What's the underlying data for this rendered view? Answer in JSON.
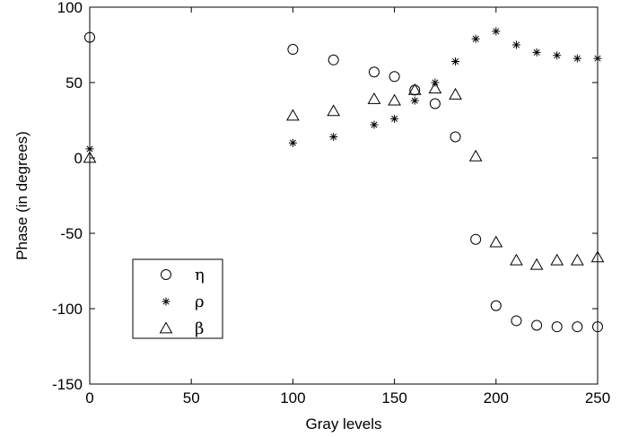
{
  "chart_data": {
    "type": "scatter",
    "title": "",
    "xlabel": "Gray levels",
    "ylabel": "Phase (in degrees)",
    "xlim": [
      0,
      250
    ],
    "ylim": [
      -150,
      100
    ],
    "xticks": [
      "0",
      "50",
      "100",
      "150",
      "200",
      "250"
    ],
    "yticks": [
      "100",
      "50",
      "0",
      "-50",
      "-100",
      "-150"
    ],
    "grid": false,
    "legend_position": "bottom-left",
    "series": [
      {
        "name": "η",
        "marker": "circle",
        "x": [
          0,
          100,
          120,
          140,
          150,
          160,
          170,
          180,
          190,
          200,
          210,
          220,
          230,
          240,
          250
        ],
        "y": [
          80,
          72,
          65,
          57,
          54,
          45,
          36,
          14,
          -54,
          -98,
          -108,
          -111,
          -112,
          -112,
          -112
        ]
      },
      {
        "name": "ρ",
        "marker": "asterisk",
        "x": [
          0,
          100,
          120,
          140,
          150,
          160,
          170,
          180,
          190,
          200,
          210,
          220,
          230,
          240,
          250
        ],
        "y": [
          6,
          10,
          14,
          22,
          26,
          38,
          50,
          64,
          79,
          84,
          75,
          70,
          68,
          66,
          66
        ]
      },
      {
        "name": "β",
        "marker": "triangle",
        "x": [
          0,
          100,
          120,
          140,
          150,
          160,
          170,
          180,
          190,
          200,
          210,
          220,
          230,
          240,
          250
        ],
        "y": [
          0,
          28,
          31,
          39,
          38,
          45,
          46,
          42,
          1,
          -56,
          -68,
          -71,
          -68,
          -68,
          -66
        ]
      }
    ]
  }
}
